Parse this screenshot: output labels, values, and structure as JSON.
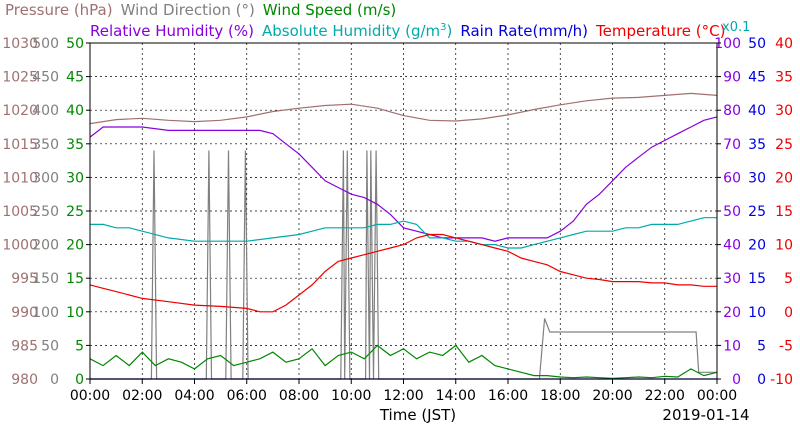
{
  "chart_data": {
    "type": "line",
    "xlabel": "Time (JST)",
    "date": "2019-01-14",
    "x_ticks": [
      "00:00",
      "02:00",
      "04:00",
      "06:00",
      "08:00",
      "10:00",
      "12:00",
      "14:00",
      "16:00",
      "18:00",
      "20:00",
      "22:00",
      "00:00"
    ],
    "legend_row1": [
      {
        "name": "Pressure (hPa)",
        "color": "#A07070"
      },
      {
        "name": "Wind Direction (°)",
        "color": "#808080"
      },
      {
        "name": "Wind Speed (m/s)",
        "color": "#008800"
      }
    ],
    "legend_row2": [
      {
        "name": "Relative Humidity (%)",
        "color": "#8800DD"
      },
      {
        "name": "Absolute Humidity (g/m",
        "color": "#00AAAA",
        "superscript": "3",
        "suffix": ")"
      },
      {
        "name": "Rain Rate(mm/h)",
        "color": "#0000DD"
      },
      {
        "name": "Temperature (°C)",
        "color": "#EE0000"
      }
    ],
    "multiplier_note": "x0.1",
    "axes": {
      "pressure": {
        "color": "#A07070",
        "ticks": [
          "980",
          "985",
          "990",
          "995",
          "1000",
          "1005",
          "1010",
          "1015",
          "1020",
          "1025",
          "1030"
        ],
        "ylim": [
          980,
          1030
        ]
      },
      "wind_direction": {
        "color": "#808080",
        "ticks": [
          "0",
          "50",
          "100",
          "150",
          "200",
          "250",
          "300",
          "350",
          "400",
          "450",
          "500"
        ],
        "ylim": [
          0,
          500
        ]
      },
      "wind_speed": {
        "color": "#008800",
        "ticks": [
          "0",
          "5",
          "10",
          "15",
          "20",
          "25",
          "30",
          "35",
          "40",
          "45",
          "50"
        ],
        "ylim": [
          0,
          50
        ]
      },
      "humidity": {
        "color": "#8800DD",
        "ticks": [
          "0",
          "10",
          "20",
          "30",
          "40",
          "50",
          "60",
          "70",
          "80",
          "90",
          "100"
        ],
        "ylim": [
          0,
          100
        ]
      },
      "rain_rate": {
        "color": "#0000DD",
        "ticks": [
          "0",
          "5",
          "10",
          "15",
          "20",
          "25",
          "30",
          "35",
          "40",
          "45",
          "50"
        ],
        "ylim": [
          0,
          50
        ]
      },
      "temperature": {
        "color": "#EE0000",
        "ticks": [
          "-10",
          "-5",
          "0",
          "5",
          "10",
          "15",
          "20",
          "25",
          "30",
          "35",
          "40"
        ],
        "ylim": [
          -10,
          40
        ]
      }
    },
    "x_range_hours": [
      0,
      24
    ],
    "grid": true,
    "series": [
      {
        "name": "Pressure (hPa)",
        "axis": "pressure",
        "color": "#A07070",
        "x": [
          0,
          1,
          2,
          3,
          4,
          5,
          6,
          7,
          8,
          9,
          10,
          11,
          12,
          13,
          14,
          15,
          16,
          17,
          18,
          19,
          20,
          21,
          22,
          23,
          24
        ],
        "y": [
          1018,
          1018.6,
          1018.8,
          1018.5,
          1018.3,
          1018.5,
          1019,
          1019.8,
          1020.3,
          1020.7,
          1020.9,
          1020.3,
          1019.2,
          1018.5,
          1018.4,
          1018.7,
          1019.3,
          1020.1,
          1020.8,
          1021.4,
          1021.8,
          1021.9,
          1022.2,
          1022.5,
          1022.2
        ]
      },
      {
        "name": "Wind Direction (°)",
        "axis": "wind_direction",
        "color": "#808080",
        "x": [
          0,
          2.35,
          2.45,
          2.55,
          4.45,
          4.55,
          4.65,
          5.2,
          5.3,
          5.4,
          5.85,
          5.95,
          6.05,
          9.6,
          9.7,
          9.75,
          9.85,
          9.95,
          10.55,
          10.6,
          10.7,
          10.75,
          10.85,
          10.95,
          11.05,
          11.15,
          17.2,
          17.4,
          17.6,
          23.2,
          23.3,
          24
        ],
        "y": [
          0,
          0,
          340,
          0,
          0,
          340,
          0,
          0,
          340,
          0,
          0,
          340,
          0,
          0,
          340,
          0,
          340,
          0,
          0,
          340,
          0,
          340,
          0,
          340,
          0,
          0,
          0,
          90,
          70,
          70,
          10,
          10
        ]
      },
      {
        "name": "Wind Speed (m/s)",
        "axis": "wind_speed",
        "color": "#008800",
        "x": [
          0,
          0.5,
          1,
          1.5,
          2,
          2.5,
          3,
          3.5,
          4,
          4.5,
          5,
          5.5,
          6,
          6.5,
          7,
          7.5,
          8,
          8.5,
          9,
          9.5,
          10,
          10.5,
          11,
          11.5,
          12,
          12.5,
          13,
          13.5,
          14,
          14.5,
          15,
          15.5,
          16,
          16.5,
          17,
          17.5,
          18,
          18.5,
          19,
          19.5,
          20,
          20.5,
          21,
          21.5,
          22,
          22.5,
          23,
          23.5,
          24
        ],
        "y": [
          3,
          2,
          3.5,
          2,
          4,
          2,
          3,
          2.5,
          1.5,
          3,
          3.5,
          2,
          2.5,
          3,
          4,
          2.5,
          3,
          4.5,
          2,
          3.5,
          4,
          3,
          5,
          3.5,
          4.5,
          3,
          4,
          3.5,
          5,
          2.5,
          3.5,
          2,
          1.5,
          1,
          0.5,
          0.5,
          0.3,
          0.2,
          0.3,
          0.2,
          0.1,
          0.2,
          0.3,
          0.2,
          0.4,
          0.3,
          1.5,
          0.5,
          1
        ]
      },
      {
        "name": "Relative Humidity (%)",
        "axis": "humidity",
        "color": "#8800DD",
        "x": [
          0,
          0.5,
          1,
          1.5,
          2,
          3,
          4,
          5,
          6,
          6.5,
          7,
          7.5,
          8,
          8.5,
          9,
          9.5,
          10,
          10.5,
          11,
          11.5,
          12,
          12.5,
          13,
          13.5,
          14,
          14.5,
          15,
          15.5,
          16,
          16.5,
          17,
          17.5,
          18,
          18.5,
          19,
          19.5,
          20,
          20.5,
          21,
          21.5,
          22,
          22.5,
          23,
          23.5,
          24
        ],
        "y": [
          72,
          75,
          75,
          75,
          75,
          74,
          74,
          74,
          74,
          74,
          73,
          70,
          67,
          63,
          59,
          57,
          55,
          54,
          52,
          49,
          45,
          44,
          43,
          42,
          42,
          42,
          42,
          41,
          42,
          42,
          42,
          42,
          44,
          47,
          52,
          55,
          59,
          63,
          66,
          69,
          71,
          73,
          75,
          77,
          78
        ]
      },
      {
        "name": "Absolute Humidity (g/m³)",
        "axis": "humidity",
        "color": "#00AAAA",
        "x": [
          0,
          0.5,
          1,
          1.5,
          2,
          3,
          4,
          5,
          6,
          7,
          8,
          8.5,
          9,
          9.5,
          10,
          10.5,
          11,
          11.5,
          12,
          12.5,
          13,
          13.5,
          14,
          14.5,
          15,
          15.5,
          16,
          16.5,
          17,
          17.5,
          18,
          18.5,
          19,
          19.5,
          20,
          20.5,
          21,
          21.5,
          22,
          22.5,
          23,
          23.5,
          24
        ],
        "y": [
          46,
          46,
          45,
          45,
          44,
          42,
          41,
          41,
          41,
          42,
          43,
          44,
          45,
          45,
          45,
          45,
          46,
          46,
          47,
          46,
          42,
          42,
          41,
          41,
          40,
          40,
          39,
          39,
          40,
          41,
          42,
          43,
          44,
          44,
          44,
          45,
          45,
          46,
          46,
          46,
          47,
          48,
          48
        ]
      },
      {
        "name": "Temperature (°C)",
        "axis": "temperature",
        "color": "#EE0000",
        "x": [
          0,
          0.5,
          1,
          1.5,
          2,
          3,
          4,
          5,
          6,
          6.5,
          7,
          7.5,
          8,
          8.5,
          9,
          9.5,
          10,
          10.5,
          11,
          11.5,
          12,
          12.5,
          13,
          13.5,
          14,
          14.5,
          15,
          15.5,
          16,
          16.5,
          17,
          17.5,
          18,
          18.5,
          19,
          19.5,
          20,
          20.5,
          21,
          21.5,
          22,
          22.5,
          23,
          23.5,
          24
        ],
        "y": [
          4,
          3.5,
          3,
          2.5,
          2,
          1.5,
          1,
          0.8,
          0.5,
          0,
          0,
          1,
          2.5,
          4,
          6,
          7.5,
          8,
          8.5,
          9,
          9.5,
          10,
          11,
          11.5,
          11.5,
          11,
          10.5,
          10,
          9.5,
          9,
          8,
          7.5,
          7,
          6,
          5.5,
          5,
          4.8,
          4.5,
          4.5,
          4.5,
          4.3,
          4.3,
          4,
          4,
          3.8,
          3.8
        ]
      },
      {
        "name": "Rain Rate(mm/h)",
        "axis": "rain_rate",
        "color": "#0000DD",
        "x": [
          0,
          24
        ],
        "y": [
          0,
          0
        ]
      }
    ]
  }
}
